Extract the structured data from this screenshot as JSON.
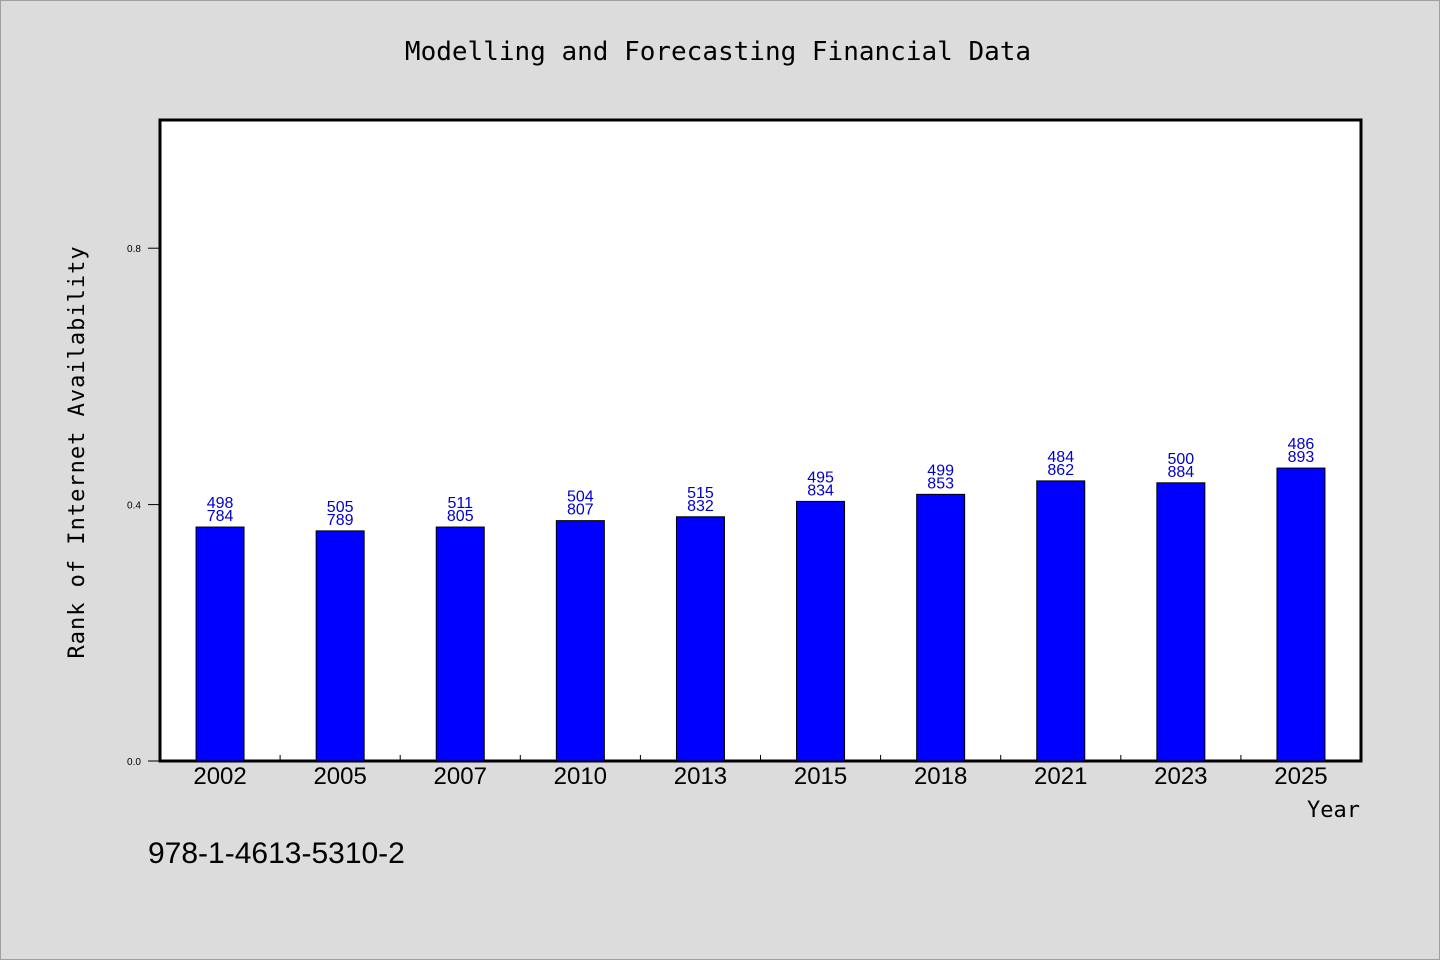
{
  "chart_data": {
    "type": "bar",
    "title": "Modelling and Forecasting Financial Data",
    "xlabel": "Year",
    "ylabel": "Rank of Internet Availability",
    "categories": [
      "2002",
      "2005",
      "2007",
      "2010",
      "2013",
      "2015",
      "2018",
      "2021",
      "2023",
      "2025"
    ],
    "series": [
      {
        "values": [
          0.365,
          0.359,
          0.365,
          0.375,
          0.381,
          0.405,
          0.416,
          0.437,
          0.434,
          0.457
        ]
      }
    ],
    "data_labels_top": [
      "498",
      "505",
      "511",
      "504",
      "515",
      "495",
      "499",
      "484",
      "500",
      "486"
    ],
    "data_labels_bottom": [
      "784",
      "789",
      "805",
      "807",
      "832",
      "834",
      "853",
      "862",
      "884",
      "893"
    ],
    "ylim": [
      0,
      1.0
    ],
    "yticks": [
      0.0,
      0.4,
      0.8
    ],
    "ytick_labels": [
      "0.0",
      "0.4",
      "0.8"
    ],
    "grid": false,
    "bar_color": "#0000ff",
    "label_color": "#0000cc",
    "background": "#dcdcdc",
    "plot_background": "#ffffff"
  },
  "footer": {
    "isbn": "978-1-4613-5310-2"
  }
}
